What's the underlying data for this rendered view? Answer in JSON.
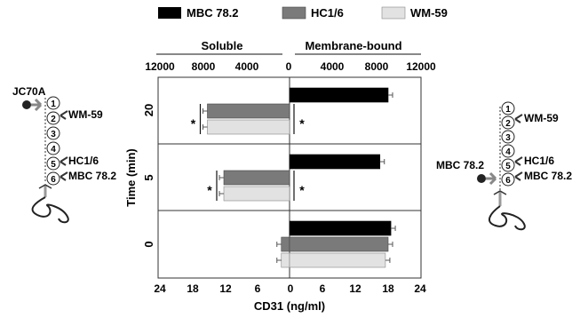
{
  "legend": [
    {
      "name": "MBC 78.2",
      "color": "#000000"
    },
    {
      "name": "HC1/6",
      "color": "#7a7a7a"
    },
    {
      "name": "WM-59",
      "color": "#e2e2e2"
    }
  ],
  "top_axis": {
    "left_title": "Soluble",
    "right_title": "Membrane-bound",
    "left_ticks": [
      "12000",
      "8000",
      "4000",
      "0"
    ],
    "right_ticks": [
      "4000",
      "8000",
      "12000"
    ]
  },
  "bottom_axis": {
    "label": "CD31 (ng/ml)",
    "ticks": [
      "24",
      "18",
      "12",
      "6",
      "0",
      "6",
      "12",
      "18",
      "24"
    ]
  },
  "y_axis": {
    "label": "Time (min)"
  },
  "significance_marker": "*",
  "diagram_left": {
    "top_label": "JC70A",
    "domains": [
      "1",
      "2",
      "3",
      "4",
      "5",
      "6"
    ],
    "antibodies": [
      "WM-59",
      "HC1/6",
      "MBC 78.2"
    ]
  },
  "diagram_right": {
    "domains": [
      "1",
      "2",
      "3",
      "4",
      "5",
      "6"
    ],
    "antibodies": [
      "WM-59",
      "HC1/6",
      "MBC 78.2"
    ],
    "side_label": "MBC 78.2"
  },
  "chart_data": {
    "type": "bar",
    "orientation": "horizontal",
    "title": "",
    "xlabel": "CD31 (ng/ml)",
    "ylabel": "Time (min)",
    "xlim_soluble": [
      0,
      24
    ],
    "xlim_membrane": [
      0,
      24
    ],
    "categories": [
      "20",
      "5",
      "0"
    ],
    "series": [
      {
        "name": "MBC 78.2",
        "soluble": [
          0,
          0,
          0
        ],
        "membrane": [
          18.0,
          16.5,
          18.5
        ]
      },
      {
        "name": "HC1/6",
        "soluble": [
          15.0,
          12.0,
          1.5
        ],
        "membrane": [
          0,
          0,
          18.0
        ]
      },
      {
        "name": "WM-59",
        "soluble": [
          15.0,
          12.0,
          1.5
        ],
        "membrane": [
          0,
          0,
          17.5
        ]
      }
    ],
    "significant_soluble": [
      "20",
      "5"
    ],
    "significant_membrane": [
      "20",
      "5"
    ]
  }
}
